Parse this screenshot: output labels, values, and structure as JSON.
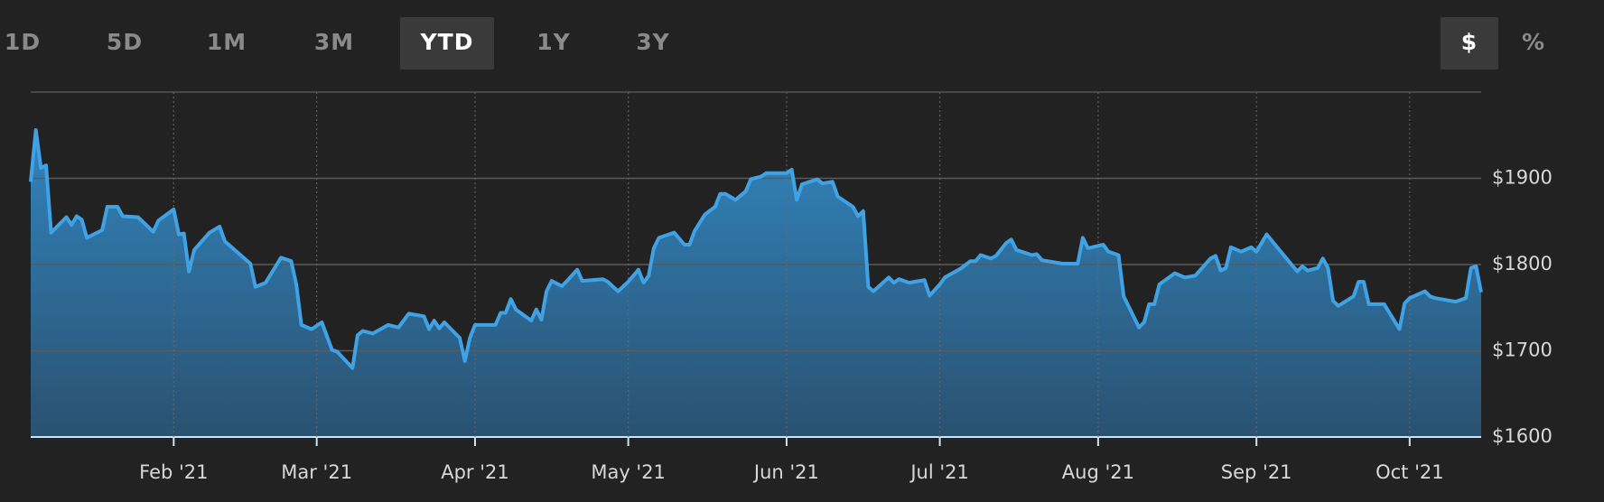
{
  "range_tabs": [
    "1D",
    "5D",
    "1M",
    "3M",
    "YTD",
    "1Y",
    "3Y"
  ],
  "unit_tabs": [
    "$",
    "%"
  ],
  "chart_data": {
    "type": "area",
    "x": [
      4,
      5,
      6,
      7,
      8,
      10,
      11,
      12,
      13,
      14,
      15,
      18,
      19,
      21,
      22,
      25,
      28,
      29,
      32,
      33,
      34,
      35,
      36,
      39,
      41,
      42,
      47,
      48,
      50,
      53,
      55,
      56,
      57,
      59,
      61,
      63,
      64,
      67,
      68,
      69,
      71,
      74,
      76,
      78,
      81,
      82,
      83,
      84,
      85,
      88,
      89,
      90,
      91,
      95,
      96,
      97,
      98,
      99,
      102,
      103,
      104,
      105,
      106,
      108,
      109,
      111,
      112,
      116,
      117,
      119,
      121,
      123,
      124,
      125,
      126,
      127,
      130,
      132,
      133,
      134,
      136,
      138,
      139,
      140,
      142,
      144,
      145,
      147,
      148,
      152,
      153,
      154,
      155,
      158,
      159,
      161,
      162,
      165,
      166,
      167,
      168,
      169,
      172,
      173,
      174,
      176,
      179,
      180,
      182,
      183,
      186,
      188,
      189,
      190,
      192,
      193,
      195,
      196,
      197,
      200,
      201,
      202,
      206,
      209,
      210,
      211,
      214,
      215,
      217,
      218,
      221,
      222,
      223,
      224,
      225,
      228,
      230,
      232,
      235,
      236,
      237,
      238,
      239,
      241,
      243,
      244,
      246,
      251,
      252,
      253,
      254,
      256,
      257,
      258,
      259,
      260,
      263,
      264,
      265,
      266,
      269,
      272,
      273,
      274,
      277,
      278,
      279,
      283,
      285,
      286,
      287,
      288
    ],
    "values": [
      1896,
      1956,
      1912,
      1915,
      1837,
      1849,
      1855,
      1846,
      1856,
      1852,
      1831,
      1840,
      1867,
      1867,
      1856,
      1855,
      1838,
      1851,
      1864,
      1835,
      1836,
      1792,
      1817,
      1837,
      1844,
      1827,
      1801,
      1774,
      1779,
      1808,
      1804,
      1777,
      1730,
      1725,
      1733,
      1701,
      1699,
      1680,
      1718,
      1723,
      1720,
      1730,
      1727,
      1743,
      1740,
      1725,
      1735,
      1726,
      1733,
      1715,
      1688,
      1715,
      1730,
      1730,
      1744,
      1744,
      1760,
      1748,
      1735,
      1748,
      1736,
      1769,
      1781,
      1775,
      1781,
      1794,
      1781,
      1783,
      1780,
      1769,
      1780,
      1794,
      1779,
      1787,
      1819,
      1831,
      1837,
      1823,
      1823,
      1839,
      1858,
      1867,
      1882,
      1882,
      1875,
      1885,
      1899,
      1902,
      1906,
      1906,
      1910,
      1875,
      1893,
      1899,
      1894,
      1896,
      1879,
      1867,
      1856,
      1862,
      1774,
      1769,
      1785,
      1779,
      1783,
      1779,
      1782,
      1764,
      1777,
      1785,
      1795,
      1804,
      1804,
      1811,
      1807,
      1810,
      1825,
      1829,
      1817,
      1811,
      1812,
      1805,
      1801,
      1801,
      1831,
      1819,
      1823,
      1815,
      1811,
      1763,
      1727,
      1733,
      1754,
      1754,
      1777,
      1790,
      1785,
      1787,
      1807,
      1810,
      1793,
      1796,
      1820,
      1815,
      1820,
      1815,
      1835,
      1799,
      1792,
      1798,
      1793,
      1796,
      1807,
      1796,
      1758,
      1752,
      1763,
      1780,
      1780,
      1754,
      1754,
      1725,
      1755,
      1761,
      1769,
      1763,
      1761,
      1757,
      1761,
      1796,
      1798,
      1768
    ],
    "color": "#3fa2e4",
    "xlim": [
      4,
      288
    ],
    "xticks": [
      {
        "value": 32,
        "label": "Feb '21"
      },
      {
        "value": 60,
        "label": "Mar '21"
      },
      {
        "value": 91,
        "label": "Apr '21"
      },
      {
        "value": 121,
        "label": "May '21"
      },
      {
        "value": 152,
        "label": "Jun '21"
      },
      {
        "value": 182,
        "label": "Jul '21"
      },
      {
        "value": 213,
        "label": "Aug '21"
      },
      {
        "value": 244,
        "label": "Sep '21"
      },
      {
        "value": 274,
        "label": "Oct '21"
      }
    ],
    "ylim": [
      1600,
      2000
    ],
    "yticks": [
      {
        "value": 1600,
        "label": "$1600"
      },
      {
        "value": 1700,
        "label": "$1700"
      },
      {
        "value": 1800,
        "label": "$1800"
      },
      {
        "value": 1900,
        "label": "$1900"
      }
    ],
    "grid": true
  }
}
